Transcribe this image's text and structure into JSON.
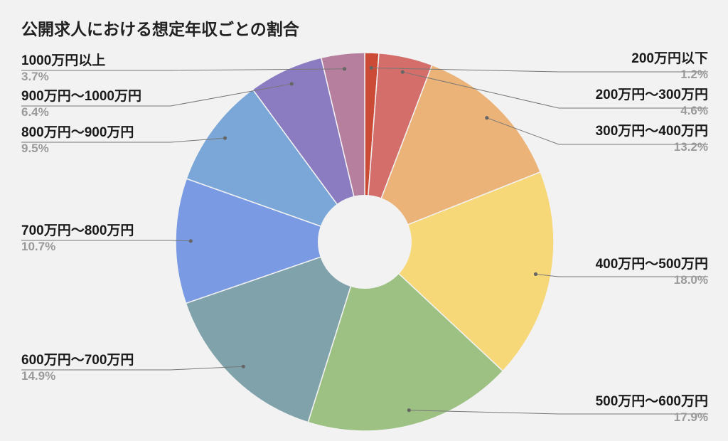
{
  "chart_data": {
    "type": "pie",
    "title": "公開求人における想定年収ごとの割合",
    "donut": true,
    "slices": [
      {
        "label": "200万円以下",
        "value": 1.2,
        "display": "1.2%",
        "color": "#cc4b37"
      },
      {
        "label": "200万円～300万円",
        "value": 4.6,
        "display": "4.6%",
        "color": "#d46e6b"
      },
      {
        "label": "300万円～400万円",
        "value": 13.2,
        "display": "13.2%",
        "color": "#ebb378"
      },
      {
        "label": "400万円～500万円",
        "value": 18.0,
        "display": "18.0%",
        "color": "#f7d878"
      },
      {
        "label": "500万円～600万円",
        "value": 17.9,
        "display": "17.9%",
        "color": "#9dc183"
      },
      {
        "label": "600万円～700万円",
        "value": 14.9,
        "display": "14.9%",
        "color": "#80a2ab"
      },
      {
        "label": "700万円～800万円",
        "value": 10.7,
        "display": "10.7%",
        "color": "#7a9be3"
      },
      {
        "label": "800万円～900万円",
        "value": 9.5,
        "display": "9.5%",
        "color": "#7aa6d8"
      },
      {
        "label": "900万円～1000万円",
        "value": 6.4,
        "display": "6.4%",
        "color": "#8b7cc2"
      },
      {
        "label": "1000万円以上",
        "value": 3.7,
        "display": "3.7%",
        "color": "#b77f9e"
      }
    ]
  }
}
